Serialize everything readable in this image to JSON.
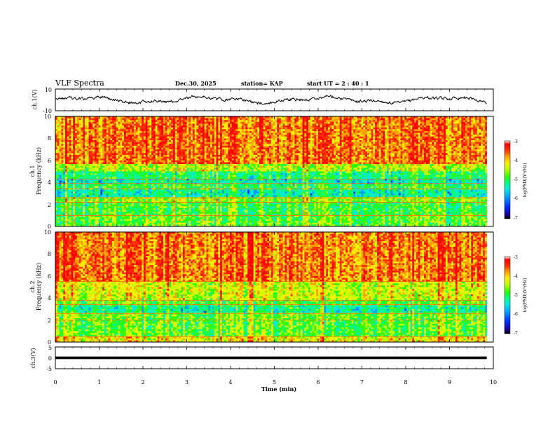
{
  "header": {
    "title": "VLF Spectra",
    "date": "Dec.30, 2025",
    "station": "station= KAP",
    "start": "start  UT =   2 : 40 : 1"
  },
  "colors": {
    "colormap": [
      "#000000",
      "#1a00a0",
      "#0030ff",
      "#00a0ff",
      "#00e8e0",
      "#00ff80",
      "#30ff00",
      "#c0ff00",
      "#ffee00",
      "#ffa000",
      "#ff3000",
      "#ff0000",
      "#ffffff"
    ],
    "trace": "#000000"
  },
  "chart_data": [
    {
      "type": "line",
      "id": "ch1_waveform",
      "ylabel": "ch.1(V)",
      "ytick_labels": [
        "10",
        "-10"
      ],
      "ylim": [
        -10,
        10
      ],
      "xlim": [
        0,
        10
      ],
      "description_values": {
        "baseline": 0,
        "amplitude_range": [
          -4,
          6
        ]
      }
    },
    {
      "type": "heatmap",
      "id": "ch1_spectrogram",
      "ylabel_channel": "ch.1",
      "ylabel": "Frequency (kHz)",
      "y_ticks": [
        0,
        2,
        4,
        6,
        8,
        10
      ],
      "ytick_labels": [
        "0",
        "2",
        "4",
        "6",
        "8",
        "10"
      ],
      "ylim": [
        0,
        10
      ],
      "xlim": [
        0,
        10
      ],
      "colorbar": {
        "label": "log(PSD)(V²/Hz)",
        "range": [
          -7,
          -3
        ],
        "ticks": [
          "-3",
          "-4",
          "-5",
          "-6",
          "-7"
        ]
      },
      "band_levels_kHz": [
        {
          "from": 0.0,
          "to": 1.0,
          "level": 0.55
        },
        {
          "from": 1.0,
          "to": 2.2,
          "level": 0.52
        },
        {
          "from": 2.2,
          "to": 2.6,
          "level": 0.6
        },
        {
          "from": 2.6,
          "to": 3.4,
          "level": 0.42
        },
        {
          "from": 3.4,
          "to": 3.9,
          "level": 0.5
        },
        {
          "from": 3.9,
          "to": 4.3,
          "level": 0.4
        },
        {
          "from": 4.3,
          "to": 5.0,
          "level": 0.48
        },
        {
          "from": 5.0,
          "to": 5.6,
          "level": 0.62
        },
        {
          "from": 5.6,
          "to": 10.0,
          "level": 0.82
        }
      ]
    },
    {
      "type": "heatmap",
      "id": "ch2_spectrogram",
      "ylabel_channel": "ch.2",
      "ylabel": "Frequency (kHz)",
      "y_ticks": [
        0,
        2,
        4,
        6,
        8,
        10
      ],
      "ytick_labels": [
        "0",
        "2",
        "4",
        "6",
        "8",
        "10"
      ],
      "ylim": [
        0,
        10
      ],
      "xlim": [
        0,
        10
      ],
      "colorbar": {
        "label": "log(PSD)(V²/Hz)",
        "range": [
          -7,
          -3
        ],
        "ticks": [
          "-3",
          "-4",
          "-5",
          "-6",
          "-7"
        ]
      },
      "band_levels_kHz": [
        {
          "from": 0.0,
          "to": 0.5,
          "level": 0.7
        },
        {
          "from": 0.5,
          "to": 2.0,
          "level": 0.55
        },
        {
          "from": 2.0,
          "to": 2.6,
          "level": 0.56
        },
        {
          "from": 2.6,
          "to": 3.4,
          "level": 0.44
        },
        {
          "from": 3.4,
          "to": 3.8,
          "level": 0.55
        },
        {
          "from": 3.8,
          "to": 5.5,
          "level": 0.66
        },
        {
          "from": 5.5,
          "to": 10.0,
          "level": 0.82
        }
      ]
    },
    {
      "type": "line",
      "id": "ch3_waveform",
      "ylabel": "ch.3(V)",
      "ytick_labels": [
        "5",
        "0",
        "-5"
      ],
      "ylim": [
        -5,
        5
      ],
      "xlim": [
        0,
        10
      ],
      "description_values": {
        "baseline": 0,
        "amplitude_range": [
          -0.6,
          0.6
        ]
      }
    }
  ],
  "xaxis": {
    "label": "Time (min)",
    "ticks": [
      0,
      1,
      2,
      3,
      4,
      5,
      6,
      7,
      8,
      9,
      10
    ],
    "tick_labels": [
      "0",
      "1",
      "2",
      "3",
      "4",
      "5",
      "6",
      "7",
      "8",
      "9",
      "10"
    ],
    "data_end_min": 9.85
  }
}
